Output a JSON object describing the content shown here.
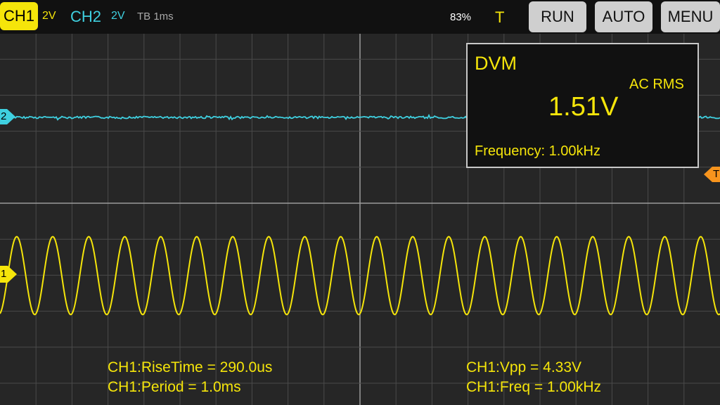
{
  "colors": {
    "ch1": "#f5e50a",
    "ch2": "#3fd0e0",
    "trigger": "#f7941d",
    "grid": "#555555",
    "background": "#262626"
  },
  "header": {
    "ch1_label": "CH1",
    "ch1_scale": "2V",
    "ch2_label": "CH2",
    "ch2_scale": "2V",
    "timebase": "TB 1ms",
    "battery": "83%",
    "trigger_indicator": "T",
    "run_label": "RUN",
    "auto_label": "AUTO",
    "menu_label": "MENU"
  },
  "markers": {
    "ch1": "1",
    "ch2": "2",
    "trigger": "T"
  },
  "dvm": {
    "title": "DVM",
    "mode": "AC RMS",
    "value": "1.51V",
    "frequency": "Frequency: 1.00kHz"
  },
  "measurements": {
    "rise_time": "CH1:RiseTime = 290.0us",
    "period": "CH1:Period = 1.0ms",
    "vpp": "CH1:Vpp = 4.33V",
    "freq": "CH1:Freq = 1.00kHz"
  },
  "waveforms": {
    "ch1": {
      "type": "sine",
      "frequency_khz": 1.0,
      "vpp_v": 4.33,
      "volts_per_div": 2
    },
    "ch2": {
      "type": "flat-noise",
      "volts_per_div": 2
    }
  }
}
